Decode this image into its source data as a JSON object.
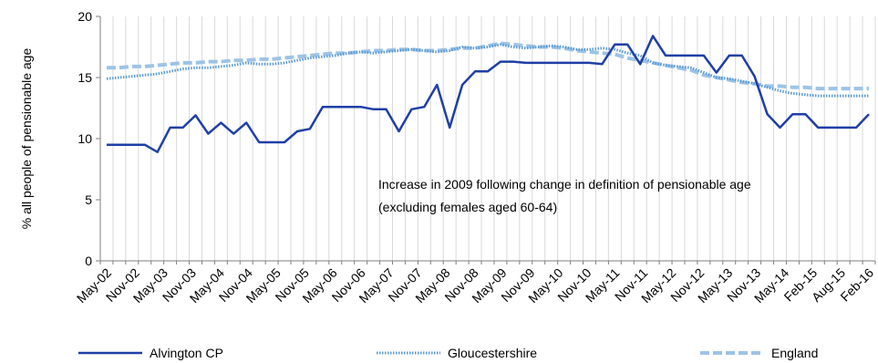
{
  "chart_data": {
    "type": "line",
    "ylabel": "% all people of pensionable age",
    "ylim": [
      0,
      20
    ],
    "yticks": [
      0,
      5,
      10,
      15,
      20
    ],
    "grid": "vertical",
    "legend_position": "bottom",
    "x_tick_labels": [
      "May-02",
      "Nov-02",
      "May-03",
      "Nov-03",
      "May-04",
      "Nov-04",
      "May-05",
      "Nov-05",
      "May-06",
      "Nov-06",
      "May-07",
      "Nov-07",
      "May-08",
      "Nov-08",
      "May-09",
      "Nov-09",
      "May-10",
      "Nov-10",
      "May-11",
      "Nov-11",
      "May-12",
      "Nov-12",
      "May-13",
      "Nov-13",
      "May-14",
      "Feb-15",
      "Aug-15",
      "Feb-16"
    ],
    "annotation": {
      "line1": "Increase in 2009 following change in definition of pensionable age",
      "line2": "(excluding females aged 60-64)"
    },
    "series": [
      {
        "name": "Alvington CP",
        "color": "#1f3fa6",
        "style": "solid",
        "values": [
          9.5,
          9.5,
          9.5,
          9.5,
          8.9,
          10.9,
          10.9,
          11.9,
          10.4,
          11.3,
          10.4,
          11.3,
          9.7,
          9.7,
          9.7,
          10.6,
          10.8,
          12.6,
          12.6,
          12.6,
          12.6,
          12.4,
          12.4,
          10.6,
          12.4,
          12.6,
          14.4,
          10.9,
          14.4,
          15.5,
          15.5,
          16.3,
          16.3,
          16.2,
          16.2,
          16.2,
          16.2,
          16.2,
          16.2,
          16.1,
          17.7,
          17.7,
          16.1,
          18.4,
          16.8,
          16.8,
          16.8,
          16.8,
          15.4,
          16.8,
          16.8,
          15.1,
          12.0,
          10.9,
          12.0,
          12.0,
          10.9,
          10.9,
          10.9,
          10.9,
          12.0
        ]
      },
      {
        "name": "Gloucestershire",
        "color": "#5b9bd5",
        "style": "dotted",
        "values": [
          14.9,
          15.0,
          15.1,
          15.2,
          15.3,
          15.5,
          15.7,
          15.8,
          15.8,
          15.9,
          16.0,
          16.2,
          16.1,
          16.1,
          16.2,
          16.4,
          16.6,
          16.7,
          16.8,
          17.0,
          17.1,
          17.0,
          17.1,
          17.2,
          17.3,
          17.2,
          17.1,
          17.2,
          17.5,
          17.4,
          17.5,
          17.7,
          17.5,
          17.4,
          17.5,
          17.6,
          17.5,
          17.3,
          17.3,
          17.4,
          17.3,
          17.0,
          16.8,
          16.2,
          16.0,
          15.9,
          15.8,
          15.4,
          15.0,
          14.9,
          14.7,
          14.5,
          14.2,
          13.9,
          13.7,
          13.6,
          13.5,
          13.5,
          13.5,
          13.5,
          13.5
        ]
      },
      {
        "name": "England",
        "color": "#9dc3e6",
        "style": "dashed",
        "values": [
          15.8,
          15.8,
          15.9,
          15.9,
          16.0,
          16.1,
          16.2,
          16.2,
          16.3,
          16.3,
          16.4,
          16.4,
          16.5,
          16.5,
          16.6,
          16.7,
          16.8,
          16.9,
          17.0,
          17.0,
          17.1,
          17.2,
          17.2,
          17.3,
          17.3,
          17.2,
          17.2,
          17.3,
          17.4,
          17.4,
          17.6,
          17.8,
          17.7,
          17.6,
          17.5,
          17.5,
          17.4,
          17.2,
          17.1,
          17.0,
          16.9,
          16.6,
          16.4,
          16.2,
          16.0,
          15.8,
          15.6,
          15.2,
          15.0,
          14.8,
          14.6,
          14.5,
          14.3,
          14.3,
          14.2,
          14.2,
          14.1,
          14.1,
          14.1,
          14.1,
          14.1
        ]
      }
    ]
  }
}
